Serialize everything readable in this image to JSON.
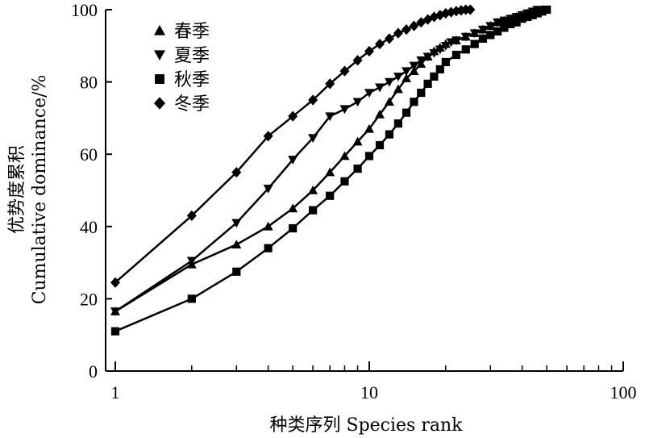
{
  "chart_data": {
    "type": "line",
    "x_scale": "log",
    "xlabel": "种类序列 Species rank",
    "ylabel_cn": "优势度累积",
    "ylabel_en": "Cumulative dominance/%",
    "xlim": [
      1,
      100
    ],
    "ylim": [
      0,
      100
    ],
    "x_ticks": [
      1,
      10,
      100
    ],
    "x_tick_labels": [
      "1",
      "10",
      "100"
    ],
    "y_ticks": [
      0,
      20,
      40,
      60,
      80,
      100
    ],
    "y_tick_labels": [
      "0",
      "20",
      "40",
      "60",
      "80",
      "100"
    ],
    "grid": false,
    "legend_position": "top-left",
    "series": [
      {
        "name": "春季",
        "marker": "triangle-up",
        "x": [
          1,
          2,
          3,
          4,
          5,
          6,
          7,
          8,
          9,
          10,
          11,
          12,
          13,
          14,
          15,
          16,
          17,
          18,
          19,
          20,
          22,
          24,
          26,
          28,
          30,
          32,
          34,
          36,
          38,
          40,
          42,
          44,
          46,
          48
        ],
        "y": [
          16.5,
          29.5,
          35,
          40,
          45,
          50,
          55,
          59.5,
          63.5,
          67,
          71,
          74.5,
          78,
          81,
          83,
          85,
          87,
          88.5,
          89.5,
          90.5,
          91.5,
          92.5,
          93.5,
          94.5,
          95.5,
          96.5,
          97,
          97.5,
          98,
          98.5,
          99,
          99.5,
          99.7,
          100
        ]
      },
      {
        "name": "夏季",
        "marker": "triangle-down",
        "x": [
          1,
          2,
          3,
          4,
          5,
          6,
          7,
          8,
          9,
          10,
          11,
          12,
          13,
          14,
          15,
          16,
          17,
          18,
          19,
          20,
          21,
          22,
          24,
          26,
          28,
          30,
          32,
          34,
          36,
          38,
          40,
          42,
          44,
          46
        ],
        "y": [
          16.5,
          30.5,
          41,
          50.5,
          58.5,
          64.5,
          70.5,
          72.5,
          74.5,
          77,
          78.5,
          80,
          81.5,
          83,
          84.5,
          86,
          87,
          88,
          89,
          90,
          91,
          91.5,
          92.5,
          93.5,
          94.5,
          95.5,
          96.5,
          97,
          97.5,
          98,
          98.5,
          99,
          99.5,
          100
        ]
      },
      {
        "name": "秋季",
        "marker": "square",
        "x": [
          1,
          2,
          3,
          4,
          5,
          6,
          7,
          8,
          9,
          10,
          11,
          12,
          13,
          14,
          15,
          16,
          17,
          18,
          19,
          20,
          22,
          24,
          26,
          28,
          30,
          32,
          34,
          36,
          38,
          40,
          42,
          44,
          46,
          48,
          50
        ],
        "y": [
          11,
          20,
          27.5,
          34,
          39.5,
          44.5,
          48.5,
          52.5,
          56,
          59.5,
          62.5,
          65.5,
          68.5,
          71.5,
          74.5,
          77,
          79.5,
          81.5,
          83.5,
          85.5,
          87.5,
          89,
          90.5,
          92,
          93,
          94,
          95,
          96,
          96.5,
          97.5,
          98,
          98.5,
          99,
          99.5,
          100
        ]
      },
      {
        "name": "冬季",
        "marker": "diamond",
        "x": [
          1,
          2,
          3,
          4,
          5,
          6,
          7,
          8,
          9,
          10,
          11,
          12,
          13,
          14,
          15,
          16,
          17,
          18,
          19,
          20,
          21,
          22,
          23,
          24,
          25
        ],
        "y": [
          24.5,
          43,
          55,
          65,
          70.5,
          75,
          79.5,
          83,
          86,
          88.5,
          90.5,
          92,
          93.5,
          94.5,
          95.5,
          96.5,
          97.3,
          98,
          98.5,
          99,
          99.3,
          99.6,
          99.8,
          100,
          100
        ]
      }
    ]
  }
}
